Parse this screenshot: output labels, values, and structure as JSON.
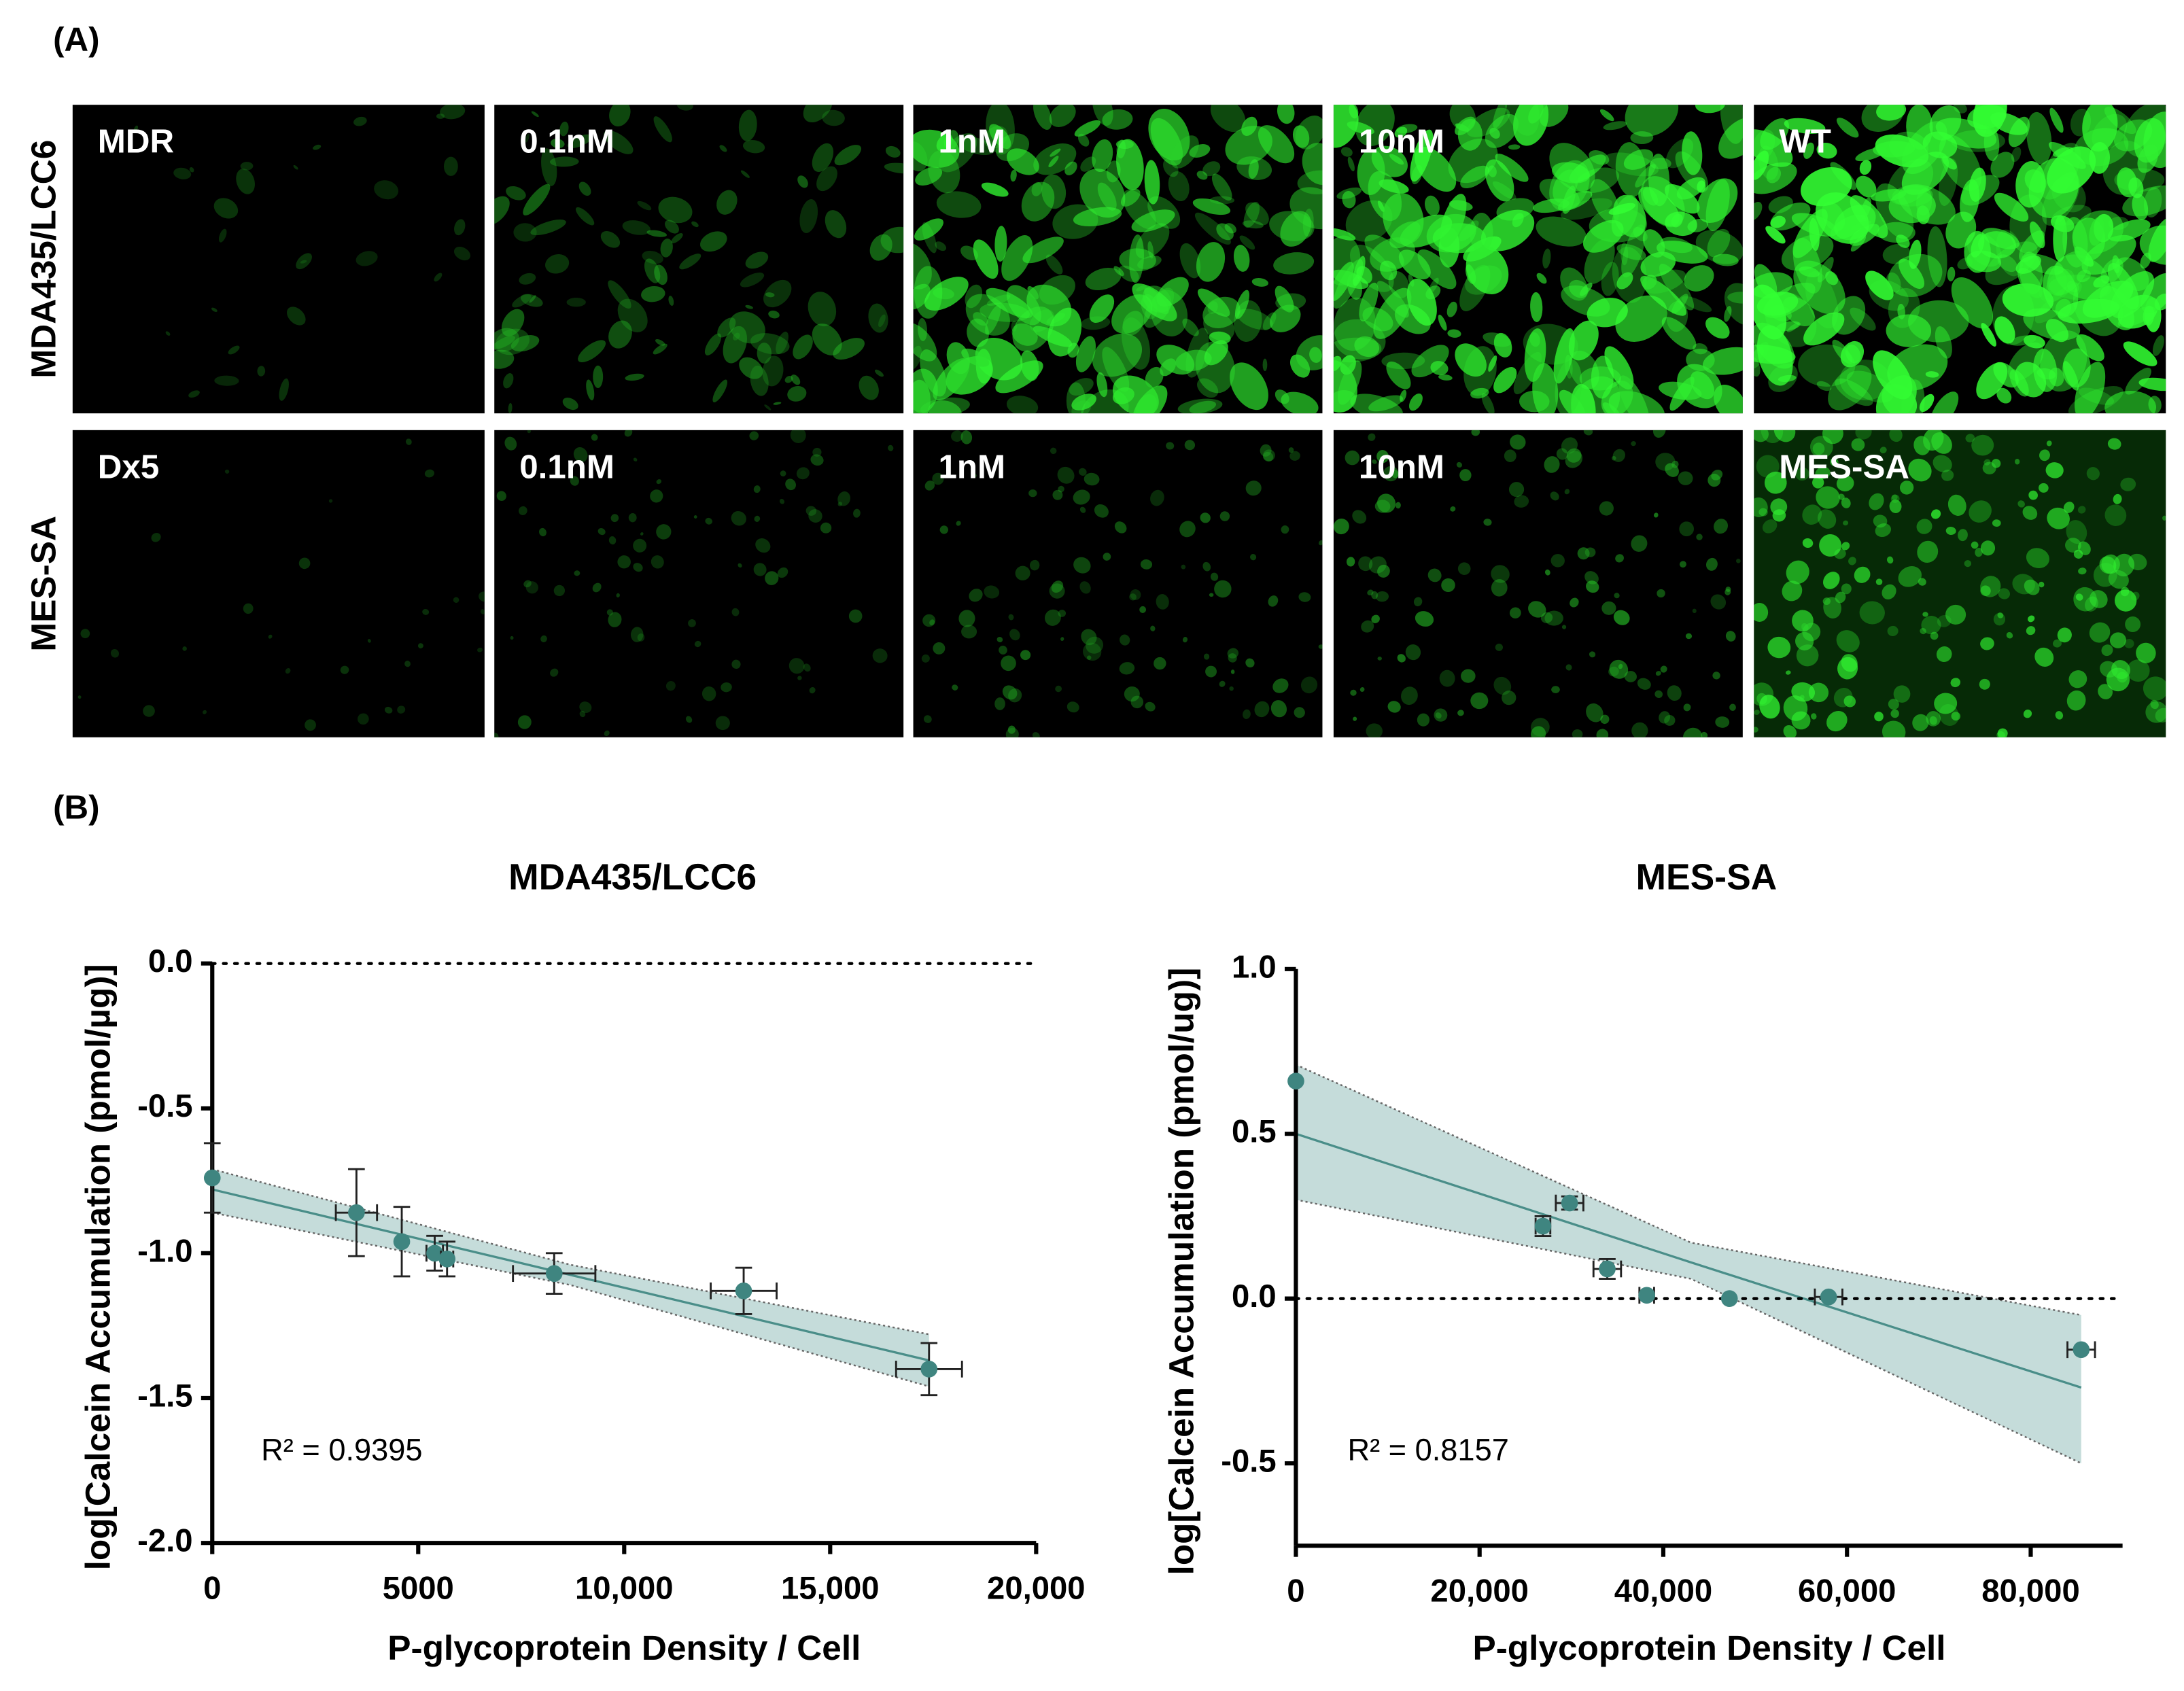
{
  "panel_a": {
    "label": "(A)",
    "rows": [
      {
        "name": "MDA435/LCC6",
        "panels": [
          "MDR",
          "0.1nM",
          "1nM",
          "10nM",
          "WT"
        ]
      },
      {
        "name": "MES-SA",
        "panels": [
          "Dx5",
          "0.1nM",
          "1nM",
          "10nM",
          "MES-SA"
        ]
      }
    ]
  },
  "panel_b_label": "(B)",
  "chart_data": [
    {
      "type": "scatter",
      "title": "MDA435/LCC6",
      "x_label": "P-glycoprotein Density / Cell",
      "y_label": "log[Calcein Accumulation (pmol/µg)]",
      "annotation": "R² = 0.9395",
      "color": "#3f8580",
      "band_color": "#c5dcda",
      "line_color": "#4a8e89",
      "x": [
        0,
        3500,
        4600,
        5400,
        5700,
        8300,
        12900,
        17400
      ],
      "values": [
        -0.74,
        -0.86,
        -0.96,
        -1.0,
        -1.02,
        -1.07,
        -1.13,
        -1.4
      ],
      "x_err": [
        0,
        500,
        0,
        200,
        150,
        1000,
        800,
        800
      ],
      "y_err": [
        0.12,
        0.15,
        0.12,
        0.06,
        0.06,
        0.07,
        0.08,
        0.09
      ],
      "fit": {
        "x": [
          0,
          8700,
          17400
        ],
        "y": [
          -0.78,
          -1.075,
          -1.37
        ]
      },
      "band": {
        "x": [
          0,
          8700,
          17400
        ],
        "upper": [
          -0.71,
          -1.04,
          -1.28
        ],
        "lower": [
          -0.86,
          -1.11,
          -1.46
        ]
      },
      "hline": 0.0,
      "xlim": [
        0,
        20000
      ],
      "xticks": [
        0,
        5000,
        {
          "value": 10000,
          "label": "10,000"
        },
        {
          "value": 15000,
          "label": "15,000"
        },
        {
          "value": 20000,
          "label": "20,000"
        }
      ],
      "ylim": [
        -2.0,
        0.0
      ],
      "yticks": [
        {
          "value": 0.0,
          "label": "0.0"
        },
        {
          "value": -0.5,
          "label": "-0.5"
        },
        {
          "value": -1.0,
          "label": "-1.0"
        },
        {
          "value": -1.5,
          "label": "-1.5"
        },
        {
          "value": -2.0,
          "label": "-2.0"
        }
      ]
    },
    {
      "type": "scatter",
      "title": "MES-SA",
      "x_label": "P-glycoprotein Density / Cell",
      "y_label": "log[Calcein Accumulation (pmol/ug)]",
      "annotation": "R² = 0.8157",
      "color": "#3f8580",
      "band_color": "#c5dcda",
      "line_color": "#4a8e89",
      "x": [
        0,
        26900,
        29800,
        33900,
        38200,
        47200,
        58000,
        85500
      ],
      "values": [
        0.66,
        0.22,
        0.29,
        0.09,
        0.01,
        0.0,
        0.005,
        -0.155
      ],
      "x_err": [
        0,
        800,
        1500,
        1500,
        800,
        0,
        1500,
        1500
      ],
      "y_err": [
        0,
        0.03,
        0.02,
        0.03,
        0,
        0,
        0,
        0
      ],
      "fit": {
        "x": [
          0,
          43000,
          85500
        ],
        "y": [
          0.5,
          0.11,
          -0.27
        ]
      },
      "band": {
        "x": [
          0,
          43000,
          85500
        ],
        "upper": [
          0.71,
          0.17,
          -0.05
        ],
        "lower": [
          0.3,
          0.06,
          -0.5
        ]
      },
      "hline": 0.0,
      "xlim": [
        0,
        90000
      ],
      "xticks": [
        0,
        {
          "value": 20000,
          "label": "20,000"
        },
        {
          "value": 40000,
          "label": "40,000"
        },
        {
          "value": 60000,
          "label": "60,000"
        },
        {
          "value": 80000,
          "label": "80,000"
        }
      ],
      "ylim": [
        -0.75,
        1.0
      ],
      "yticks": [
        {
          "value": 1.0,
          "label": "1.0"
        },
        {
          "value": 0.5,
          "label": "0.5"
        },
        {
          "value": 0.0,
          "label": "0.0"
        },
        {
          "value": -0.5,
          "label": "-0.5"
        }
      ]
    }
  ]
}
